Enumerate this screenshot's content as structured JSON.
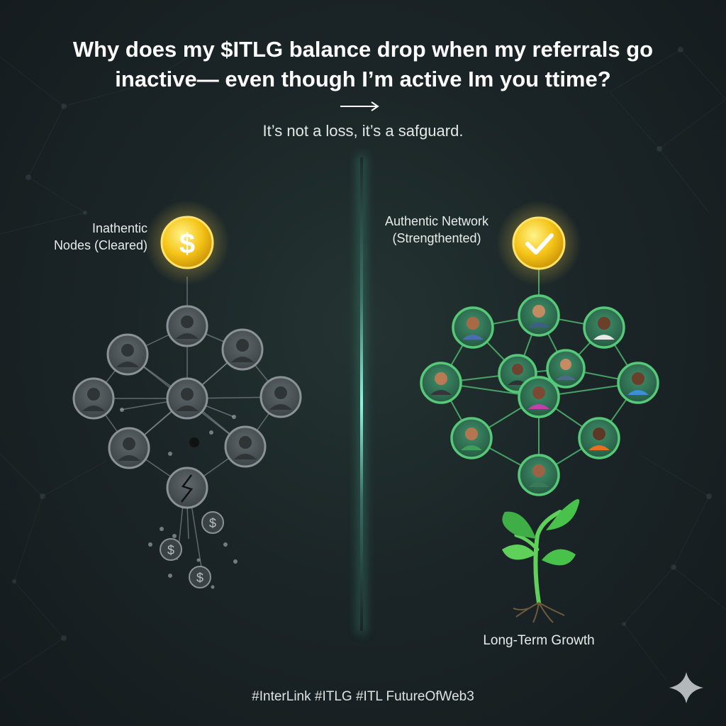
{
  "header": {
    "title_line_1": "Why does my $ITLG balance drop when my referrals go",
    "title_line_2": "inactive— even though I’m active Im you ttime?",
    "subtitle": "It’s not a loss, it’s a safguard."
  },
  "left_panel": {
    "label_line_1": "Inathentic",
    "label_line_2": "Nodes (Cleared)",
    "coin_icon": "dollar-coin-icon",
    "coin_symbol": "$",
    "falling_coin_symbol": "$",
    "node_state": "inactive"
  },
  "right_panel": {
    "label_line_1": "Authentic Network",
    "label_line_2": "(Strengthented)",
    "coin_icon": "checkmark-coin-icon",
    "node_state": "active",
    "growth_icon": "sprout-icon",
    "growth_label": "Long-Term Growth"
  },
  "footer": {
    "hashtags": "#InterLink #ITLG #ITL FutureOfWeb3",
    "logo_icon": "sparkle-icon"
  },
  "colors": {
    "coin_gold": "#f5c518",
    "active_ring": "#56c979",
    "inactive_ring": "#8b9296",
    "divider_glow": "#7ff2d4"
  }
}
